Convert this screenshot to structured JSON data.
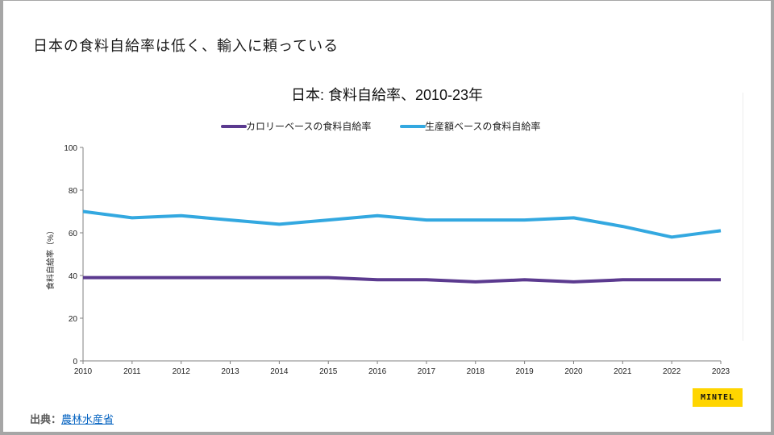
{
  "slide": {
    "title": "日本の食料自給率は低く、輸入に頼っている",
    "source_label": "出典：",
    "source_link": "農林水産省",
    "logo": "MINTEL"
  },
  "colors": {
    "calorie": "#5b3a8f",
    "production": "#33a8e0",
    "axis": "#808080",
    "logo_bg": "#ffd500"
  },
  "chart_data": {
    "type": "line",
    "title": "日本: 食料自給率、2010-23年",
    "xlabel": "",
    "ylabel": "食料自給率（%）",
    "ylim": [
      0,
      100
    ],
    "yticks": [
      "0",
      "20",
      "40",
      "60",
      "80",
      "100"
    ],
    "x": [
      "2010",
      "2011",
      "2012",
      "2013",
      "2014",
      "2015",
      "2016",
      "2017",
      "2018",
      "2019",
      "2020",
      "2021",
      "2022",
      "2023"
    ],
    "legend_position": "top",
    "grid": false,
    "series": [
      {
        "name": "カロリーベースの食料自給率",
        "color": "#5b3a8f",
        "values": [
          39,
          39,
          39,
          39,
          39,
          39,
          38,
          38,
          37,
          38,
          37,
          38,
          38,
          38
        ]
      },
      {
        "name": "生産額ベースの食料自給率",
        "color": "#33a8e0",
        "values": [
          70,
          67,
          68,
          66,
          64,
          66,
          68,
          66,
          66,
          66,
          67,
          63,
          58,
          61
        ]
      }
    ]
  }
}
